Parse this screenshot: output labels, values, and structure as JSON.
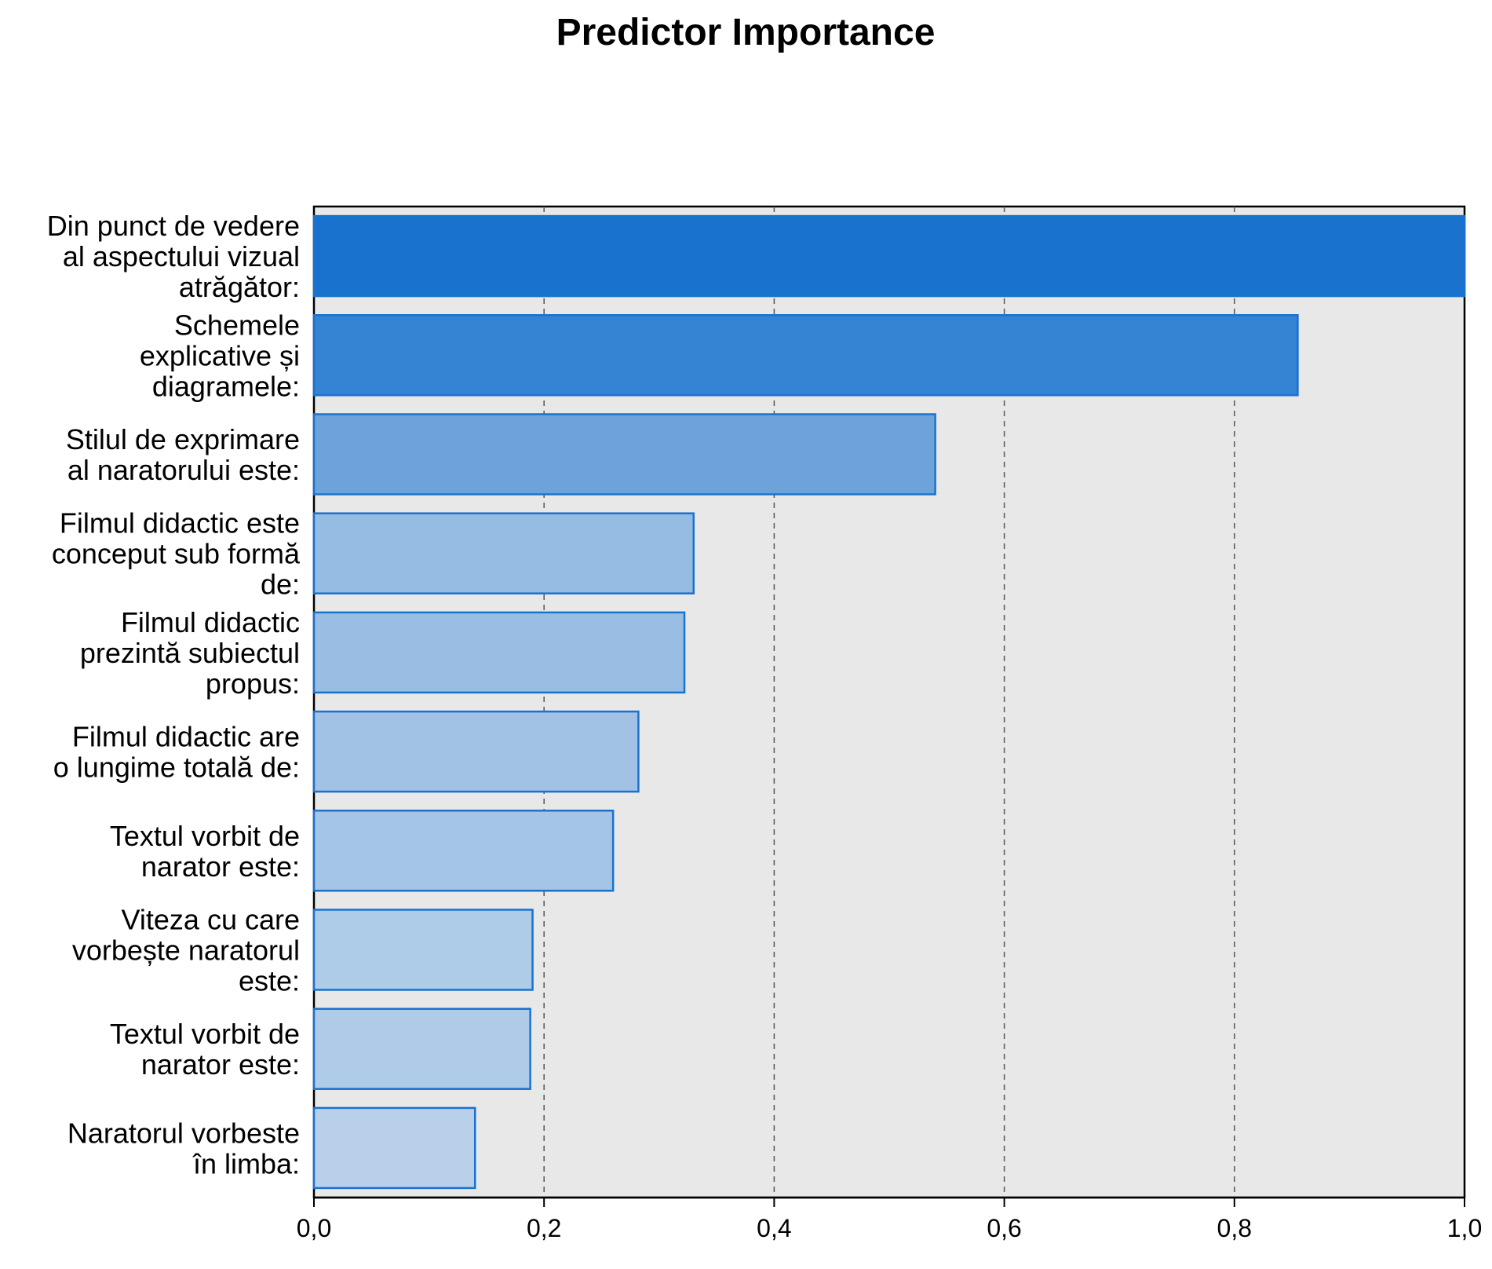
{
  "chart_data": {
    "type": "bar",
    "orientation": "horizontal",
    "title": "Predictor Importance",
    "xlabel": "",
    "ylabel": "",
    "xlim": [
      0,
      1.0
    ],
    "x_ticks": [
      "0,0",
      "0,2",
      "0,4",
      "0,6",
      "0,8",
      "1,0"
    ],
    "x_tick_values": [
      0,
      0.2,
      0.4,
      0.6,
      0.8,
      1.0
    ],
    "grid": "vertical dashed",
    "categories": [
      [
        "Din punct de vedere",
        "al aspectului vizual",
        "atrăgător:"
      ],
      [
        "Schemele",
        "explicative și",
        "diagramele:"
      ],
      [
        "Stilul de exprimare",
        "al naratorului este:"
      ],
      [
        "Filmul didactic este",
        "conceput sub formă",
        "de:"
      ],
      [
        "Filmul didactic",
        "prezintă subiectul",
        "propus:"
      ],
      [
        "Filmul didactic are",
        "o lungime totală de:"
      ],
      [
        "Textul vorbit de",
        "narator este:"
      ],
      [
        "Viteza cu care",
        "vorbește naratorul",
        "este:"
      ],
      [
        "Textul vorbit de",
        "narator este:"
      ],
      [
        "Naratorul vorbeste",
        "în limba:"
      ]
    ],
    "values": [
      1.0,
      0.855,
      0.54,
      0.33,
      0.322,
      0.282,
      0.26,
      0.19,
      0.188,
      0.14
    ],
    "colors": [
      "#1a72cf",
      "#3584d4",
      "#6da3db",
      "#97bce3",
      "#99bde3",
      "#a1c2e5",
      "#a5c5e6",
      "#aecbe8",
      "#afcbe8",
      "#b8d0ea"
    ]
  },
  "style": {
    "bar_border": "#1a72cf",
    "plot_background": "#e8e8e8",
    "axis_color": "#000000",
    "grid_color": "#555555"
  }
}
